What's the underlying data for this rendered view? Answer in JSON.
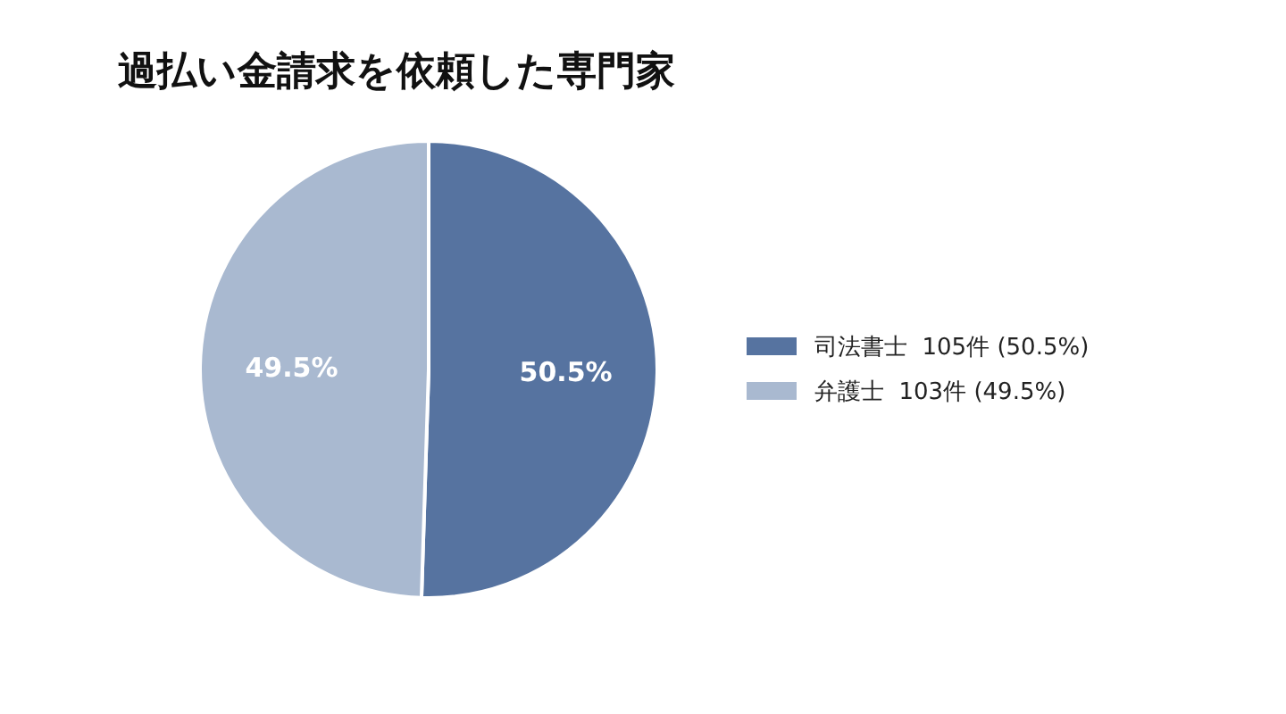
{
  "chart_data": {
    "type": "pie",
    "title": "過払い金請求を依頼した専門家",
    "categories": [
      "司法書士  105件 (50.5%)",
      "弁護士  103件 (49.5%)"
    ],
    "values": [
      50.5,
      49.5
    ],
    "colors": [
      "#5673a0",
      "#a9b9d0"
    ],
    "value_labels": [
      "50.5%",
      "49.5%"
    ],
    "legend": "right"
  }
}
